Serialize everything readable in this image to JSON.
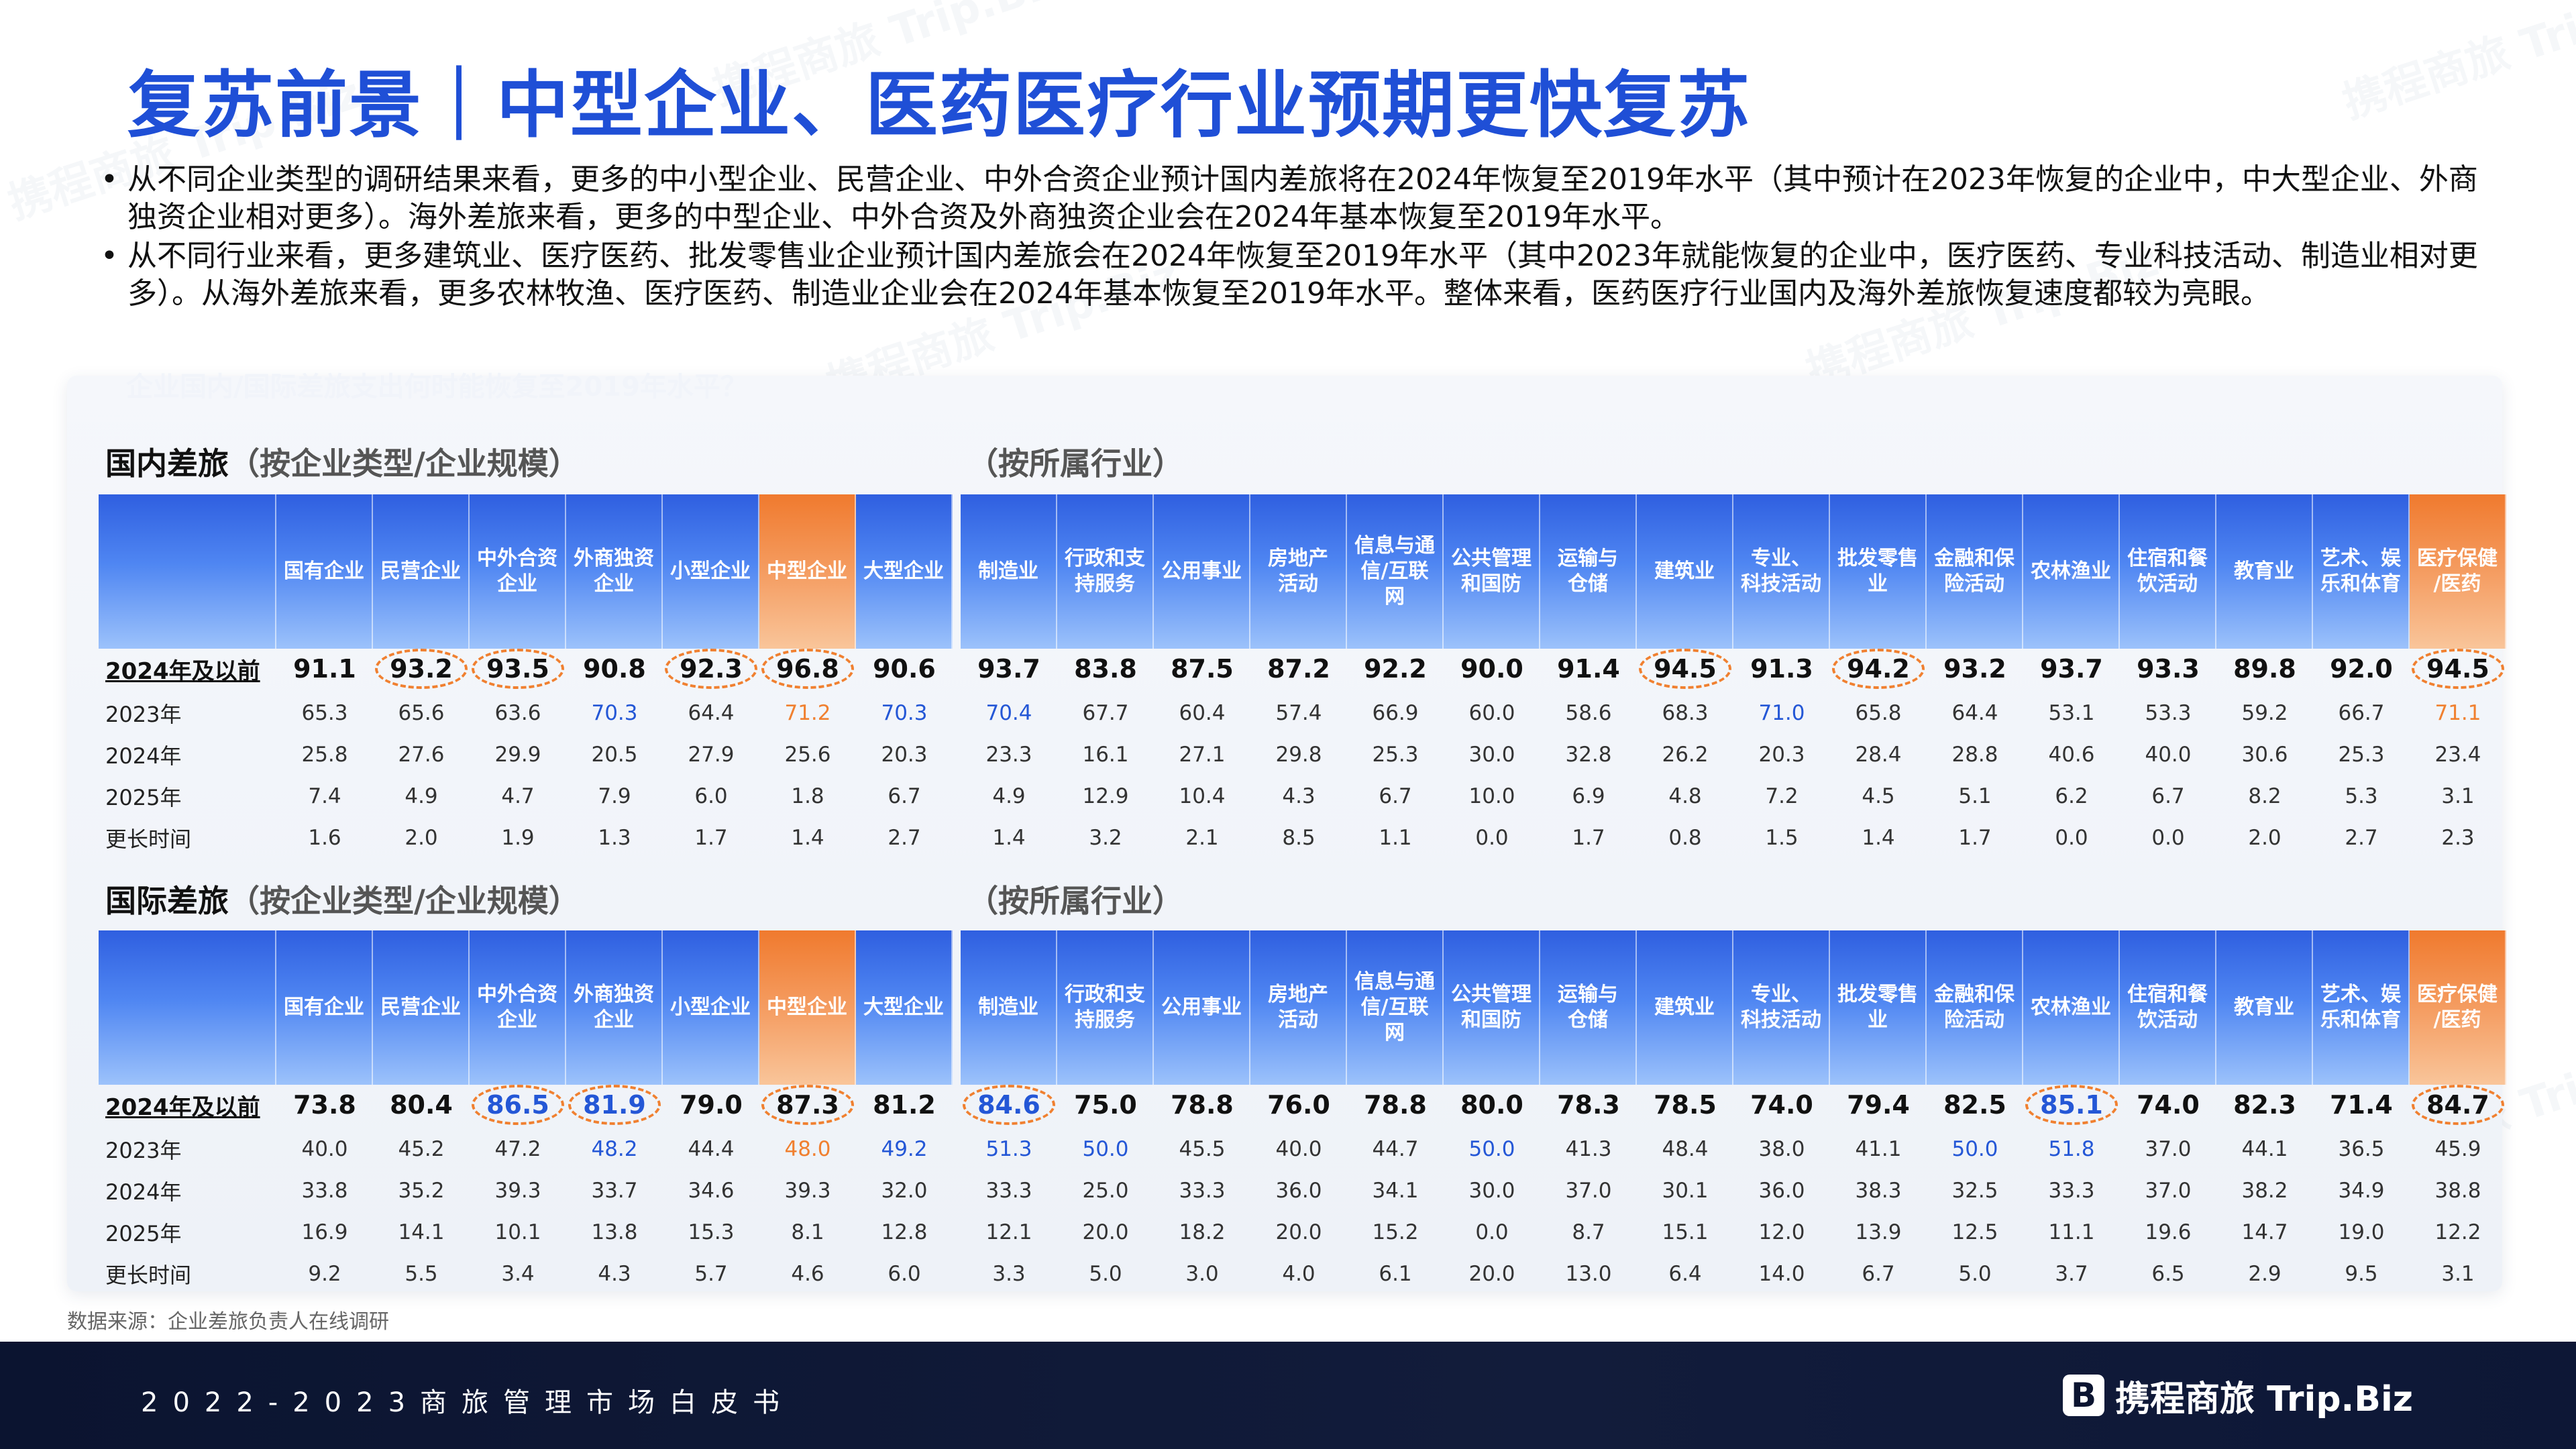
{
  "title": "复苏前景｜中型企业、医药医疗行业预期更快复苏",
  "bullets": [
    "从不同企业类型的调研结果来看，更多的中小型企业、民营企业、中外合资企业预计国内差旅将在2024年恢复至2019年水平（其中预计在2023年恢复的企业中，中大型企业、外商独资企业相对更多）。海外差旅来看，更多的中型企业、中外合资及外商独资企业会在2024年基本恢复至2019年水平。",
    "从不同行业来看，更多建筑业、医疗医药、批发零售业企业预计国内差旅会在2024年恢复至2019年水平（其中2023年就能恢复的企业中，医疗医药、专业科技活动、制造业相对更多）。从海外差旅来看，更多农林牧渔、医疗医药、制造业企业会在2024年基本恢复至2019年水平。整体来看，医药医疗行业国内及海外差旅恢复速度都较为亮眼。"
  ],
  "panel_question": "企业国内/国际差旅支出何时能恢复至2019年水平？",
  "watermark": "携程商旅 Trip.Biz",
  "row_labels": [
    "2024年及以前",
    "2023年",
    "2024年",
    "2025年",
    "更长时间"
  ],
  "company_types": [
    "国有企业",
    "民营企业",
    "中外合资企业",
    "外商独资企业",
    "小型企业",
    "中型企业",
    "大型企业"
  ],
  "industries": [
    "制造业",
    "行政和支持服务",
    "公用事业",
    "房地产活动",
    "信息与通信/互联网",
    "公共管理和国防",
    "运输与仓储",
    "建筑业",
    "专业、科技活动",
    "批发零售业",
    "金融和保险活动",
    "农林渔业",
    "住宿和餐饮活动",
    "教育业",
    "艺术、娱乐和体育",
    "医疗保健/医药"
  ],
  "company_header_lines": [
    [
      "国有企业"
    ],
    [
      "民营企业"
    ],
    [
      "中外合资",
      "企业"
    ],
    [
      "外商独资",
      "企业"
    ],
    [
      "小型企业"
    ],
    [
      "中型企业"
    ],
    [
      "大型企业"
    ]
  ],
  "industry_header_lines": [
    [
      "制造业"
    ],
    [
      "行政和支",
      "持服务"
    ],
    [
      "公用事业"
    ],
    [
      "房地产",
      "活动"
    ],
    [
      "信息与通",
      "信/互联",
      "网"
    ],
    [
      "公共管理",
      "和国防"
    ],
    [
      "运输与",
      "仓储"
    ],
    [
      "建筑业"
    ],
    [
      "专业、",
      "科技活动"
    ],
    [
      "批发零售",
      "业"
    ],
    [
      "金融和保",
      "险活动"
    ],
    [
      "农林渔业"
    ],
    [
      "住宿和餐",
      "饮活动"
    ],
    [
      "教育业"
    ],
    [
      "艺术、娱",
      "乐和体育"
    ],
    [
      "医疗保健",
      "/医药"
    ]
  ],
  "domestic": {
    "title": "国内差旅",
    "sub_company": "（按企业类型/企业规模）",
    "sub_industry": "（按所属行业）",
    "rows": [
      [
        "91.1",
        "93.2",
        "93.5",
        "90.8",
        "92.3",
        "96.8",
        "90.6",
        "93.7",
        "83.8",
        "87.5",
        "87.2",
        "92.2",
        "90.0",
        "91.4",
        "94.5",
        "91.3",
        "94.2",
        "93.2",
        "93.7",
        "93.3",
        "89.8",
        "92.0",
        "94.5"
      ],
      [
        "65.3",
        "65.6",
        "63.6",
        "70.3",
        "64.4",
        "71.2",
        "70.3",
        "70.4",
        "67.7",
        "60.4",
        "57.4",
        "66.9",
        "60.0",
        "58.6",
        "68.3",
        "71.0",
        "65.8",
        "64.4",
        "53.1",
        "53.3",
        "59.2",
        "66.7",
        "71.1"
      ],
      [
        "25.8",
        "27.6",
        "29.9",
        "20.5",
        "27.9",
        "25.6",
        "20.3",
        "23.3",
        "16.1",
        "27.1",
        "29.8",
        "25.3",
        "30.0",
        "32.8",
        "26.2",
        "20.3",
        "28.4",
        "28.8",
        "40.6",
        "40.0",
        "30.6",
        "25.3",
        "23.4"
      ],
      [
        "7.4",
        "4.9",
        "4.7",
        "7.9",
        "6.0",
        "1.8",
        "6.7",
        "4.9",
        "12.9",
        "10.4",
        "4.3",
        "6.7",
        "10.0",
        "6.9",
        "4.8",
        "7.2",
        "4.5",
        "5.1",
        "6.2",
        "6.7",
        "8.2",
        "5.3",
        "3.1"
      ],
      [
        "1.6",
        "2.0",
        "1.9",
        "1.3",
        "1.7",
        "1.4",
        "2.7",
        "1.4",
        "3.2",
        "2.1",
        "8.5",
        "1.1",
        "0.0",
        "1.7",
        "0.8",
        "1.5",
        "1.4",
        "1.7",
        "0.0",
        "0.0",
        "2.0",
        "2.7",
        "2.3"
      ]
    ],
    "circled_main": [
      1,
      2,
      4,
      5,
      14,
      16,
      22
    ],
    "blue_2023": [
      3,
      6,
      7,
      15
    ],
    "orange_2023": [
      5,
      22
    ]
  },
  "international": {
    "title": "国际差旅",
    "sub_company": "（按企业类型/企业规模）",
    "sub_industry": "（按所属行业）",
    "rows": [
      [
        "73.8",
        "80.4",
        "86.5",
        "81.9",
        "79.0",
        "87.3",
        "81.2",
        "84.6",
        "75.0",
        "78.8",
        "76.0",
        "78.8",
        "80.0",
        "78.3",
        "78.5",
        "74.0",
        "79.4",
        "82.5",
        "85.1",
        "74.0",
        "82.3",
        "71.4",
        "84.7"
      ],
      [
        "40.0",
        "45.2",
        "47.2",
        "48.2",
        "44.4",
        "48.0",
        "49.2",
        "51.3",
        "50.0",
        "45.5",
        "40.0",
        "44.7",
        "50.0",
        "41.3",
        "48.4",
        "38.0",
        "41.1",
        "50.0",
        "51.8",
        "37.0",
        "44.1",
        "36.5",
        "45.9"
      ],
      [
        "33.8",
        "35.2",
        "39.3",
        "33.7",
        "34.6",
        "39.3",
        "32.0",
        "33.3",
        "25.0",
        "33.3",
        "36.0",
        "34.1",
        "30.0",
        "37.0",
        "30.1",
        "36.0",
        "38.3",
        "32.5",
        "33.3",
        "37.0",
        "38.2",
        "34.9",
        "38.8"
      ],
      [
        "16.9",
        "14.1",
        "10.1",
        "13.8",
        "15.3",
        "8.1",
        "12.8",
        "12.1",
        "20.0",
        "18.2",
        "20.0",
        "15.2",
        "0.0",
        "8.7",
        "15.1",
        "12.0",
        "13.9",
        "12.5",
        "11.1",
        "19.6",
        "14.7",
        "19.0",
        "12.2"
      ],
      [
        "9.2",
        "5.5",
        "3.4",
        "4.3",
        "5.7",
        "4.6",
        "6.0",
        "3.3",
        "5.0",
        "3.0",
        "4.0",
        "6.1",
        "20.0",
        "13.0",
        "6.4",
        "14.0",
        "6.7",
        "5.0",
        "3.7",
        "6.5",
        "2.9",
        "9.5",
        "3.1"
      ]
    ],
    "circled_main": [
      2,
      3,
      5,
      7,
      18,
      22
    ],
    "blue_main": [
      2,
      3,
      7,
      18
    ],
    "blue_2023": [
      3,
      6,
      7,
      8,
      12,
      17,
      18
    ],
    "orange_2023": [
      5
    ]
  },
  "source": "数据来源：企业差旅负责人在线调研",
  "footer": "2022-2023商旅管理市场白皮书",
  "logo": {
    "mark": "B",
    "text": "携程商旅 Trip.Biz"
  },
  "colors": {
    "accent_blue": "#1f4fd6",
    "highlight_orange": "#f08030",
    "footer_bg": "#0b1430"
  }
}
